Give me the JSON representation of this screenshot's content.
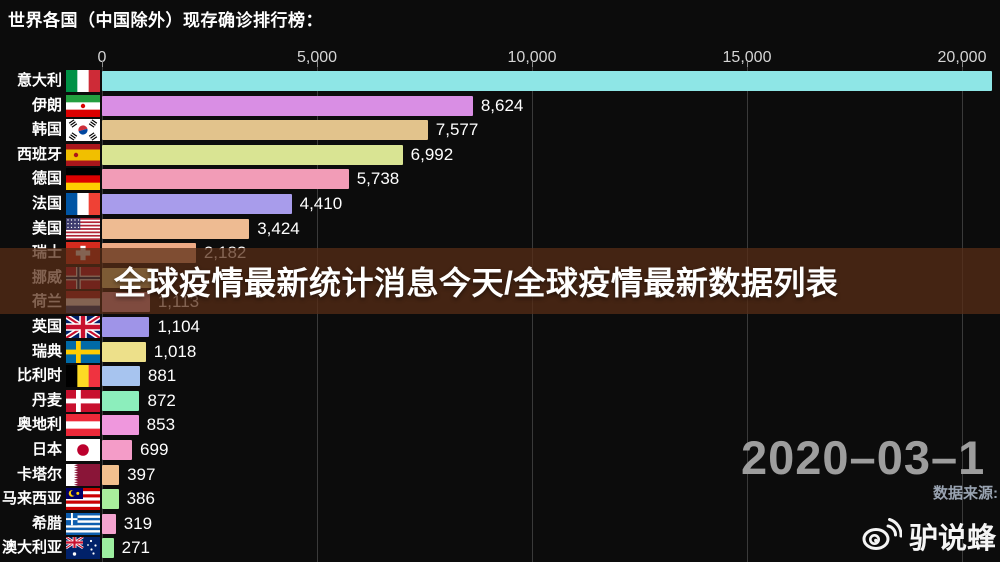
{
  "page_title": "世界各国（中国除外）现存确诊排行榜：",
  "overlay": {
    "title": "全球疫情最新统计消息今天/全球疫情最新数据列表"
  },
  "date_label": "2020–03–1",
  "source_label": "数据来源:",
  "watermark": {
    "brand": "驴说蜂",
    "icon": "weibo-logo"
  },
  "colors": {
    "background": "#0c0c0c",
    "gridline": "#3a3a3a",
    "axis_text": "#d5d5d5",
    "overlay_band": "rgba(88,44,22,0.74)",
    "date_text": "#9d9d9d",
    "source_text": "#99a3b1"
  },
  "chart_data": {
    "type": "bar",
    "orientation": "horizontal",
    "title": "世界各国（中国除外）现存确诊排行榜：",
    "xlabel": "",
    "ylabel": "",
    "xlim": [
      0,
      20000
    ],
    "grid": true,
    "axis": {
      "tick_labels": [
        "0",
        "5,000",
        "10,000",
        "15,000",
        "20,000"
      ],
      "tick_values": [
        0,
        5000,
        10000,
        15000,
        20000
      ]
    },
    "categories": [
      "意大利",
      "伊朗",
      "韩国",
      "西班牙",
      "德国",
      "法国",
      "美国",
      "瑞士",
      "挪威",
      "荷兰",
      "英国",
      "瑞典",
      "比利时",
      "丹麦",
      "奥地利",
      "日本",
      "卡塔尔",
      "马来西亚",
      "希腊",
      "澳大利亚"
    ],
    "values": [
      20700,
      8624,
      7577,
      6992,
      5738,
      4410,
      3424,
      2182,
      1163,
      1113,
      1104,
      1018,
      881,
      872,
      853,
      699,
      397,
      386,
      319,
      271
    ],
    "notes": "意大利 value label is cut off beyond right edge; 挪威 value label hidden behind headline overlay; both values estimated from bar length.",
    "bars": [
      {
        "country": "意大利",
        "code": "it",
        "value": 20700,
        "value_label": "",
        "label_hidden": true,
        "estimated": true,
        "color": "#8ee6e6",
        "flag_spec": {
          "t": "v",
          "c": [
            "#009246",
            "#ffffff",
            "#ce2b37"
          ]
        }
      },
      {
        "country": "伊朗",
        "code": "ir",
        "value": 8624,
        "value_label": "8,624",
        "color": "#d98ee4",
        "flag_spec": {
          "t": "h",
          "c": [
            "#239f40",
            "#ffffff",
            "#da0000"
          ],
          "dot": "#da0000"
        }
      },
      {
        "country": "韩国",
        "code": "kr",
        "value": 7577,
        "value_label": "7,577",
        "color": "#e2c38c",
        "flag_spec": {
          "t": "kr"
        }
      },
      {
        "country": "西班牙",
        "code": "es",
        "value": 6992,
        "value_label": "6,992",
        "color": "#d9e493",
        "flag_spec": {
          "t": "h",
          "c": [
            "#aa151b",
            "#f1bf00",
            "#aa151b"
          ],
          "w": [
            1,
            2,
            1
          ],
          "dot": "#ad1519",
          "dx": 10
        }
      },
      {
        "country": "德国",
        "code": "de",
        "value": 5738,
        "value_label": "5,738",
        "color": "#f29cb7",
        "flag_spec": {
          "t": "h",
          "c": [
            "#000000",
            "#dd0000",
            "#ffce00"
          ]
        }
      },
      {
        "country": "法国",
        "code": "fr",
        "value": 4410,
        "value_label": "4,410",
        "color": "#a89ceb",
        "flag_spec": {
          "t": "v",
          "c": [
            "#0055a4",
            "#ffffff",
            "#ef4135"
          ]
        }
      },
      {
        "country": "美国",
        "code": "us",
        "value": 3424,
        "value_label": "3,424",
        "color": "#eebb92",
        "flag_spec": {
          "t": "us"
        }
      },
      {
        "country": "瑞士",
        "code": "ch",
        "value": 2182,
        "value_label": "2,182",
        "color": "#edaa85",
        "flag_spec": {
          "t": "ch"
        }
      },
      {
        "country": "挪威",
        "code": "no",
        "value": 1163,
        "value_label": "",
        "label_hidden": true,
        "estimated": true,
        "color": "#e8df8f",
        "flag_spec": {
          "t": "nordic",
          "bg": "#ba0c2f",
          "outer": "#ffffff",
          "inner": "#00205b"
        }
      },
      {
        "country": "荷兰",
        "code": "nl",
        "value": 1113,
        "value_label": "1,113",
        "color": "#eea2b4",
        "flag_spec": {
          "t": "h",
          "c": [
            "#ae1c28",
            "#ffffff",
            "#21468b"
          ]
        }
      },
      {
        "country": "英国",
        "code": "gb",
        "value": 1104,
        "value_label": "1,104",
        "color": "#9f94e8",
        "flag_spec": {
          "t": "gb"
        }
      },
      {
        "country": "瑞典",
        "code": "se",
        "value": 1018,
        "value_label": "1,018",
        "color": "#ede08a",
        "flag_spec": {
          "t": "nordic",
          "bg": "#006aa7",
          "outer": "#fecc02"
        }
      },
      {
        "country": "比利时",
        "code": "be",
        "value": 881,
        "value_label": "881",
        "color": "#a7c4ef",
        "flag_spec": {
          "t": "v",
          "c": [
            "#000000",
            "#fdda24",
            "#ef3340"
          ]
        }
      },
      {
        "country": "丹麦",
        "code": "dk",
        "value": 872,
        "value_label": "872",
        "color": "#8ceebc",
        "flag_spec": {
          "t": "nordic",
          "bg": "#c8102e",
          "outer": "#ffffff"
        }
      },
      {
        "country": "奥地利",
        "code": "at",
        "value": 853,
        "value_label": "853",
        "color": "#ef97dd",
        "flag_spec": {
          "t": "h",
          "c": [
            "#ed2939",
            "#ffffff",
            "#ed2939"
          ]
        }
      },
      {
        "country": "日本",
        "code": "jp",
        "value": 699,
        "value_label": "699",
        "color": "#f49cc8",
        "flag_spec": {
          "t": "jp"
        }
      },
      {
        "country": "卡塔尔",
        "code": "qa",
        "value": 397,
        "value_label": "397",
        "color": "#f2c08e",
        "flag_spec": {
          "t": "qa"
        }
      },
      {
        "country": "马来西亚",
        "code": "my",
        "value": 386,
        "value_label": "386",
        "color": "#a9ee9c",
        "flag_spec": {
          "t": "my"
        }
      },
      {
        "country": "希腊",
        "code": "gr",
        "value": 319,
        "value_label": "319",
        "color": "#f4a3cf",
        "flag_spec": {
          "t": "gr"
        }
      },
      {
        "country": "澳大利亚",
        "code": "au",
        "value": 271,
        "value_label": "271",
        "color": "#9dee9f",
        "flag_spec": {
          "t": "au"
        }
      }
    ]
  }
}
